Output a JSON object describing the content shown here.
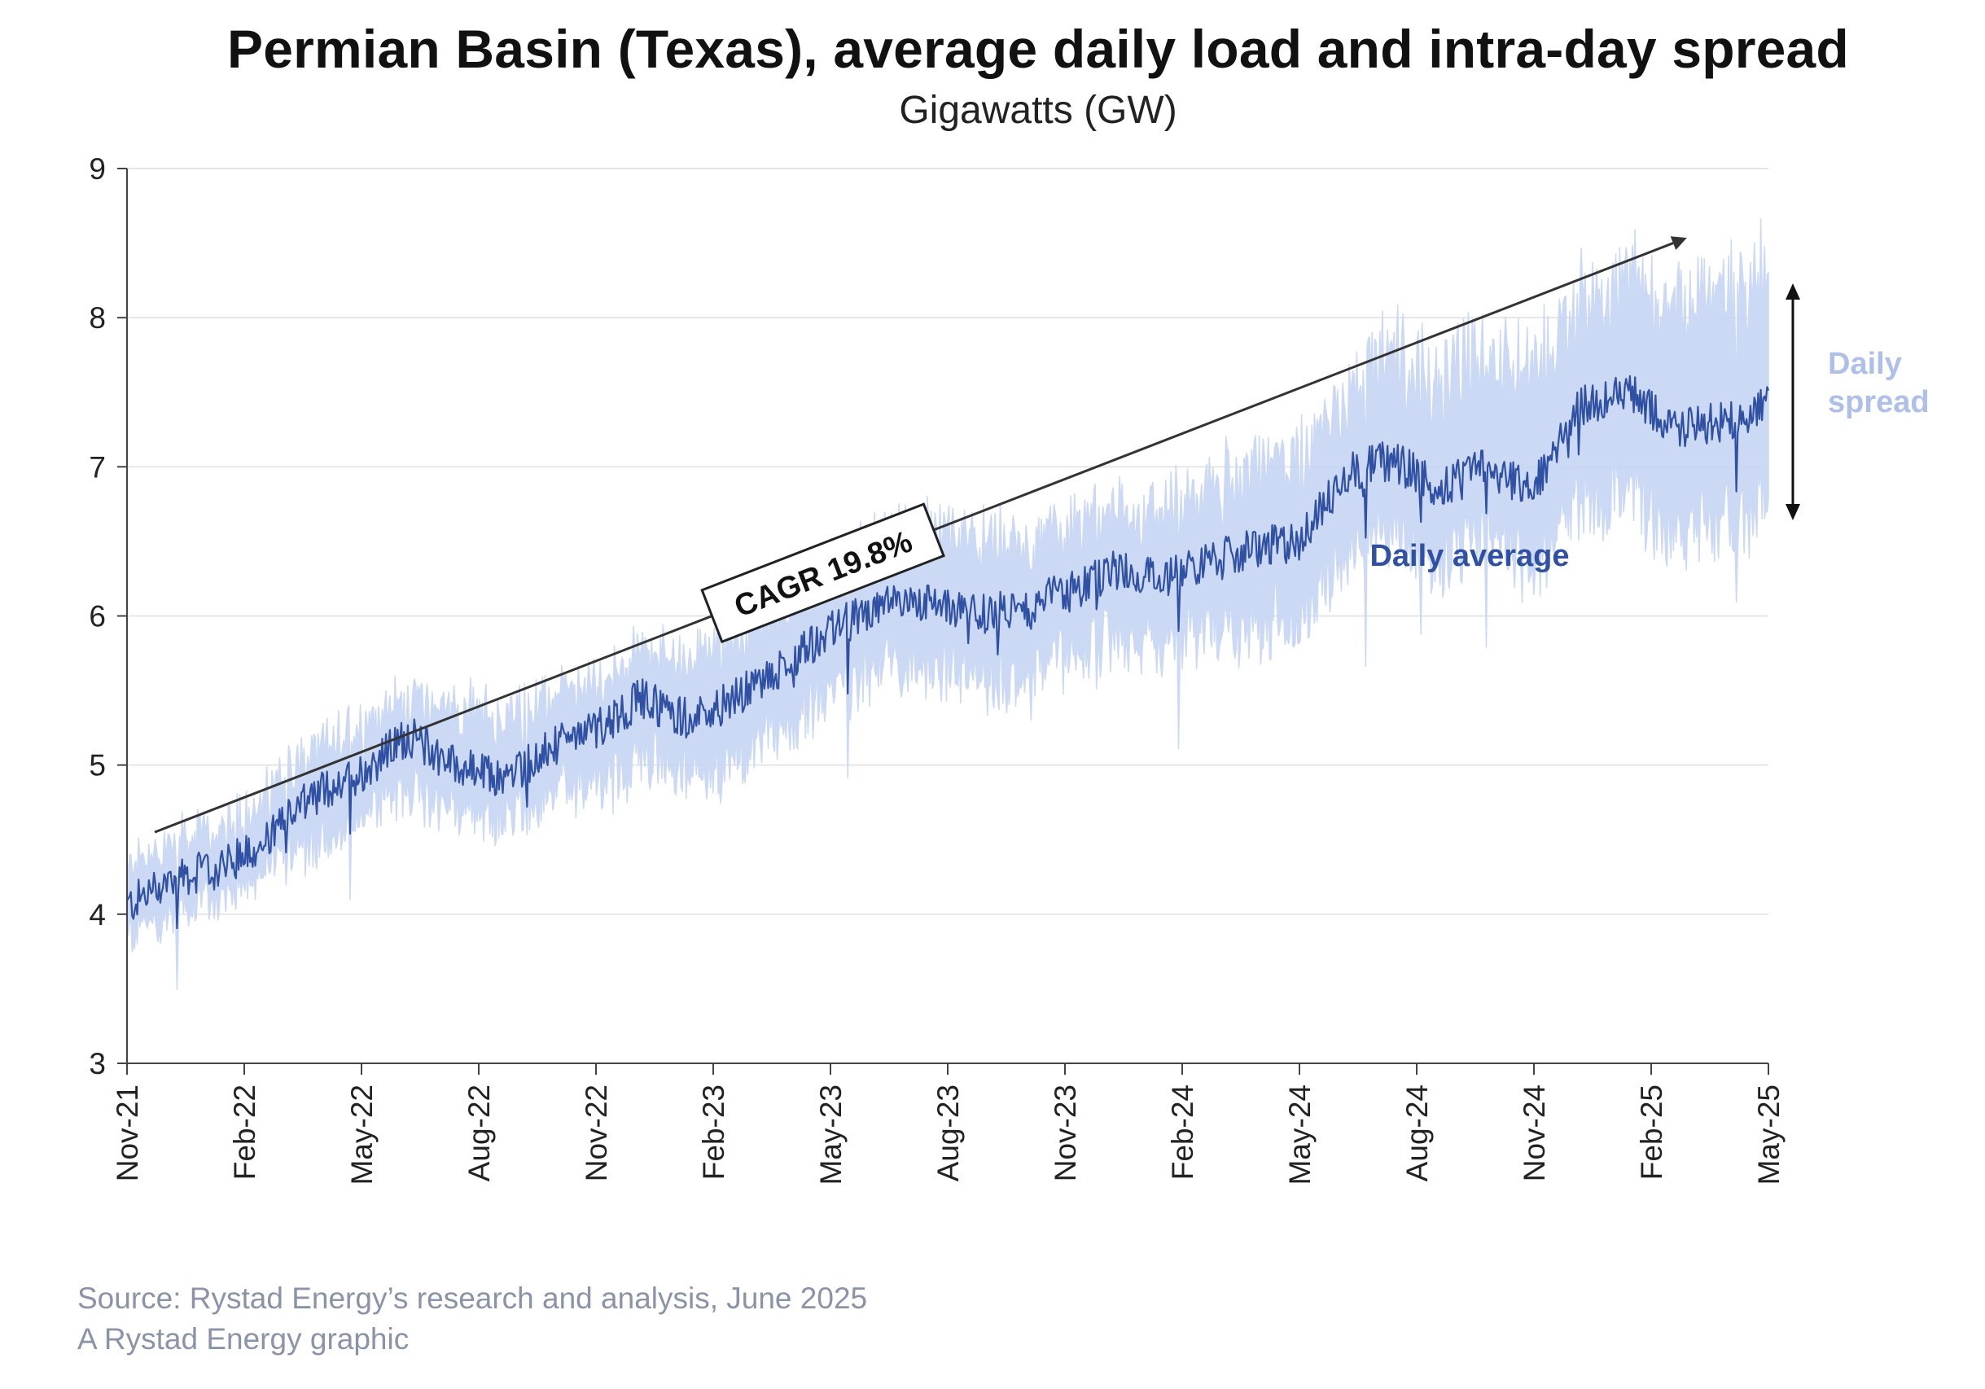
{
  "title": "Permian Basin (Texas), average daily load and intra-day spread",
  "subtitle": "Gigawatts (GW)",
  "source_lines": [
    "Source: Rystad Energy’s research and analysis, June 2025",
    "A Rystad Energy graphic"
  ],
  "colors": {
    "average": "#2f50a3",
    "spread": "#c9d7f5",
    "spread_label": "#aebfea",
    "trend": "#333333",
    "grid": "#e6e6e6"
  },
  "annotations": {
    "cagr": "CAGR 19.8%",
    "average_label": "Daily average",
    "spread_label_line1": "Daily",
    "spread_label_line2": "spread"
  },
  "chart_data": {
    "type": "area",
    "title": "Permian Basin (Texas), average daily load and intra-day spread",
    "subtitle": "Gigawatts (GW)",
    "ylim": [
      3,
      9
    ],
    "yticks": [
      3,
      4,
      5,
      6,
      7,
      8,
      9
    ],
    "x_tick_labels": [
      "Nov-21",
      "Feb-22",
      "May-22",
      "Aug-22",
      "Nov-22",
      "Feb-23",
      "May-23",
      "Aug-23",
      "Nov-23",
      "Feb-24",
      "May-24",
      "Aug-24",
      "Nov-24",
      "Feb-25",
      "May-25"
    ],
    "grid": true,
    "series": [
      {
        "name": "Daily average",
        "type": "line",
        "values": [
          4.05,
          4.25,
          4.3,
          4.5,
          4.8,
          4.95,
          5.2,
          5.0,
          4.9,
          5.1,
          5.25,
          5.45,
          5.3,
          5.45,
          5.65,
          5.9,
          6.05,
          6.1,
          6.0,
          6.05,
          6.15,
          6.3,
          6.25,
          6.35,
          6.45,
          6.5,
          6.95,
          7.05,
          6.85,
          7.0,
          6.85,
          7.4,
          7.5,
          7.25,
          7.3,
          7.4
        ]
      },
      {
        "name": "Daily spread",
        "type": "band",
        "low": [
          3.85,
          4.0,
          4.1,
          4.3,
          4.45,
          4.65,
          4.85,
          4.7,
          4.6,
          4.8,
          4.85,
          5.05,
          4.9,
          5.0,
          5.25,
          5.5,
          5.6,
          5.65,
          5.55,
          5.55,
          5.7,
          5.85,
          5.8,
          5.9,
          5.9,
          5.95,
          6.4,
          6.55,
          6.35,
          6.5,
          6.3,
          6.8,
          6.75,
          6.55,
          6.6,
          6.7
        ],
        "high": [
          4.3,
          4.5,
          4.55,
          4.8,
          5.1,
          5.3,
          5.45,
          5.4,
          5.3,
          5.45,
          5.55,
          5.8,
          5.7,
          5.9,
          6.1,
          6.35,
          6.5,
          6.6,
          6.5,
          6.5,
          6.6,
          6.75,
          6.7,
          6.85,
          7.0,
          7.1,
          7.55,
          7.8,
          7.6,
          7.85,
          7.65,
          8.15,
          8.25,
          8.1,
          8.2,
          8.3
        ]
      }
    ],
    "trend": {
      "label": "CAGR 19.8%",
      "start": 4.55,
      "end": 8.5
    }
  }
}
